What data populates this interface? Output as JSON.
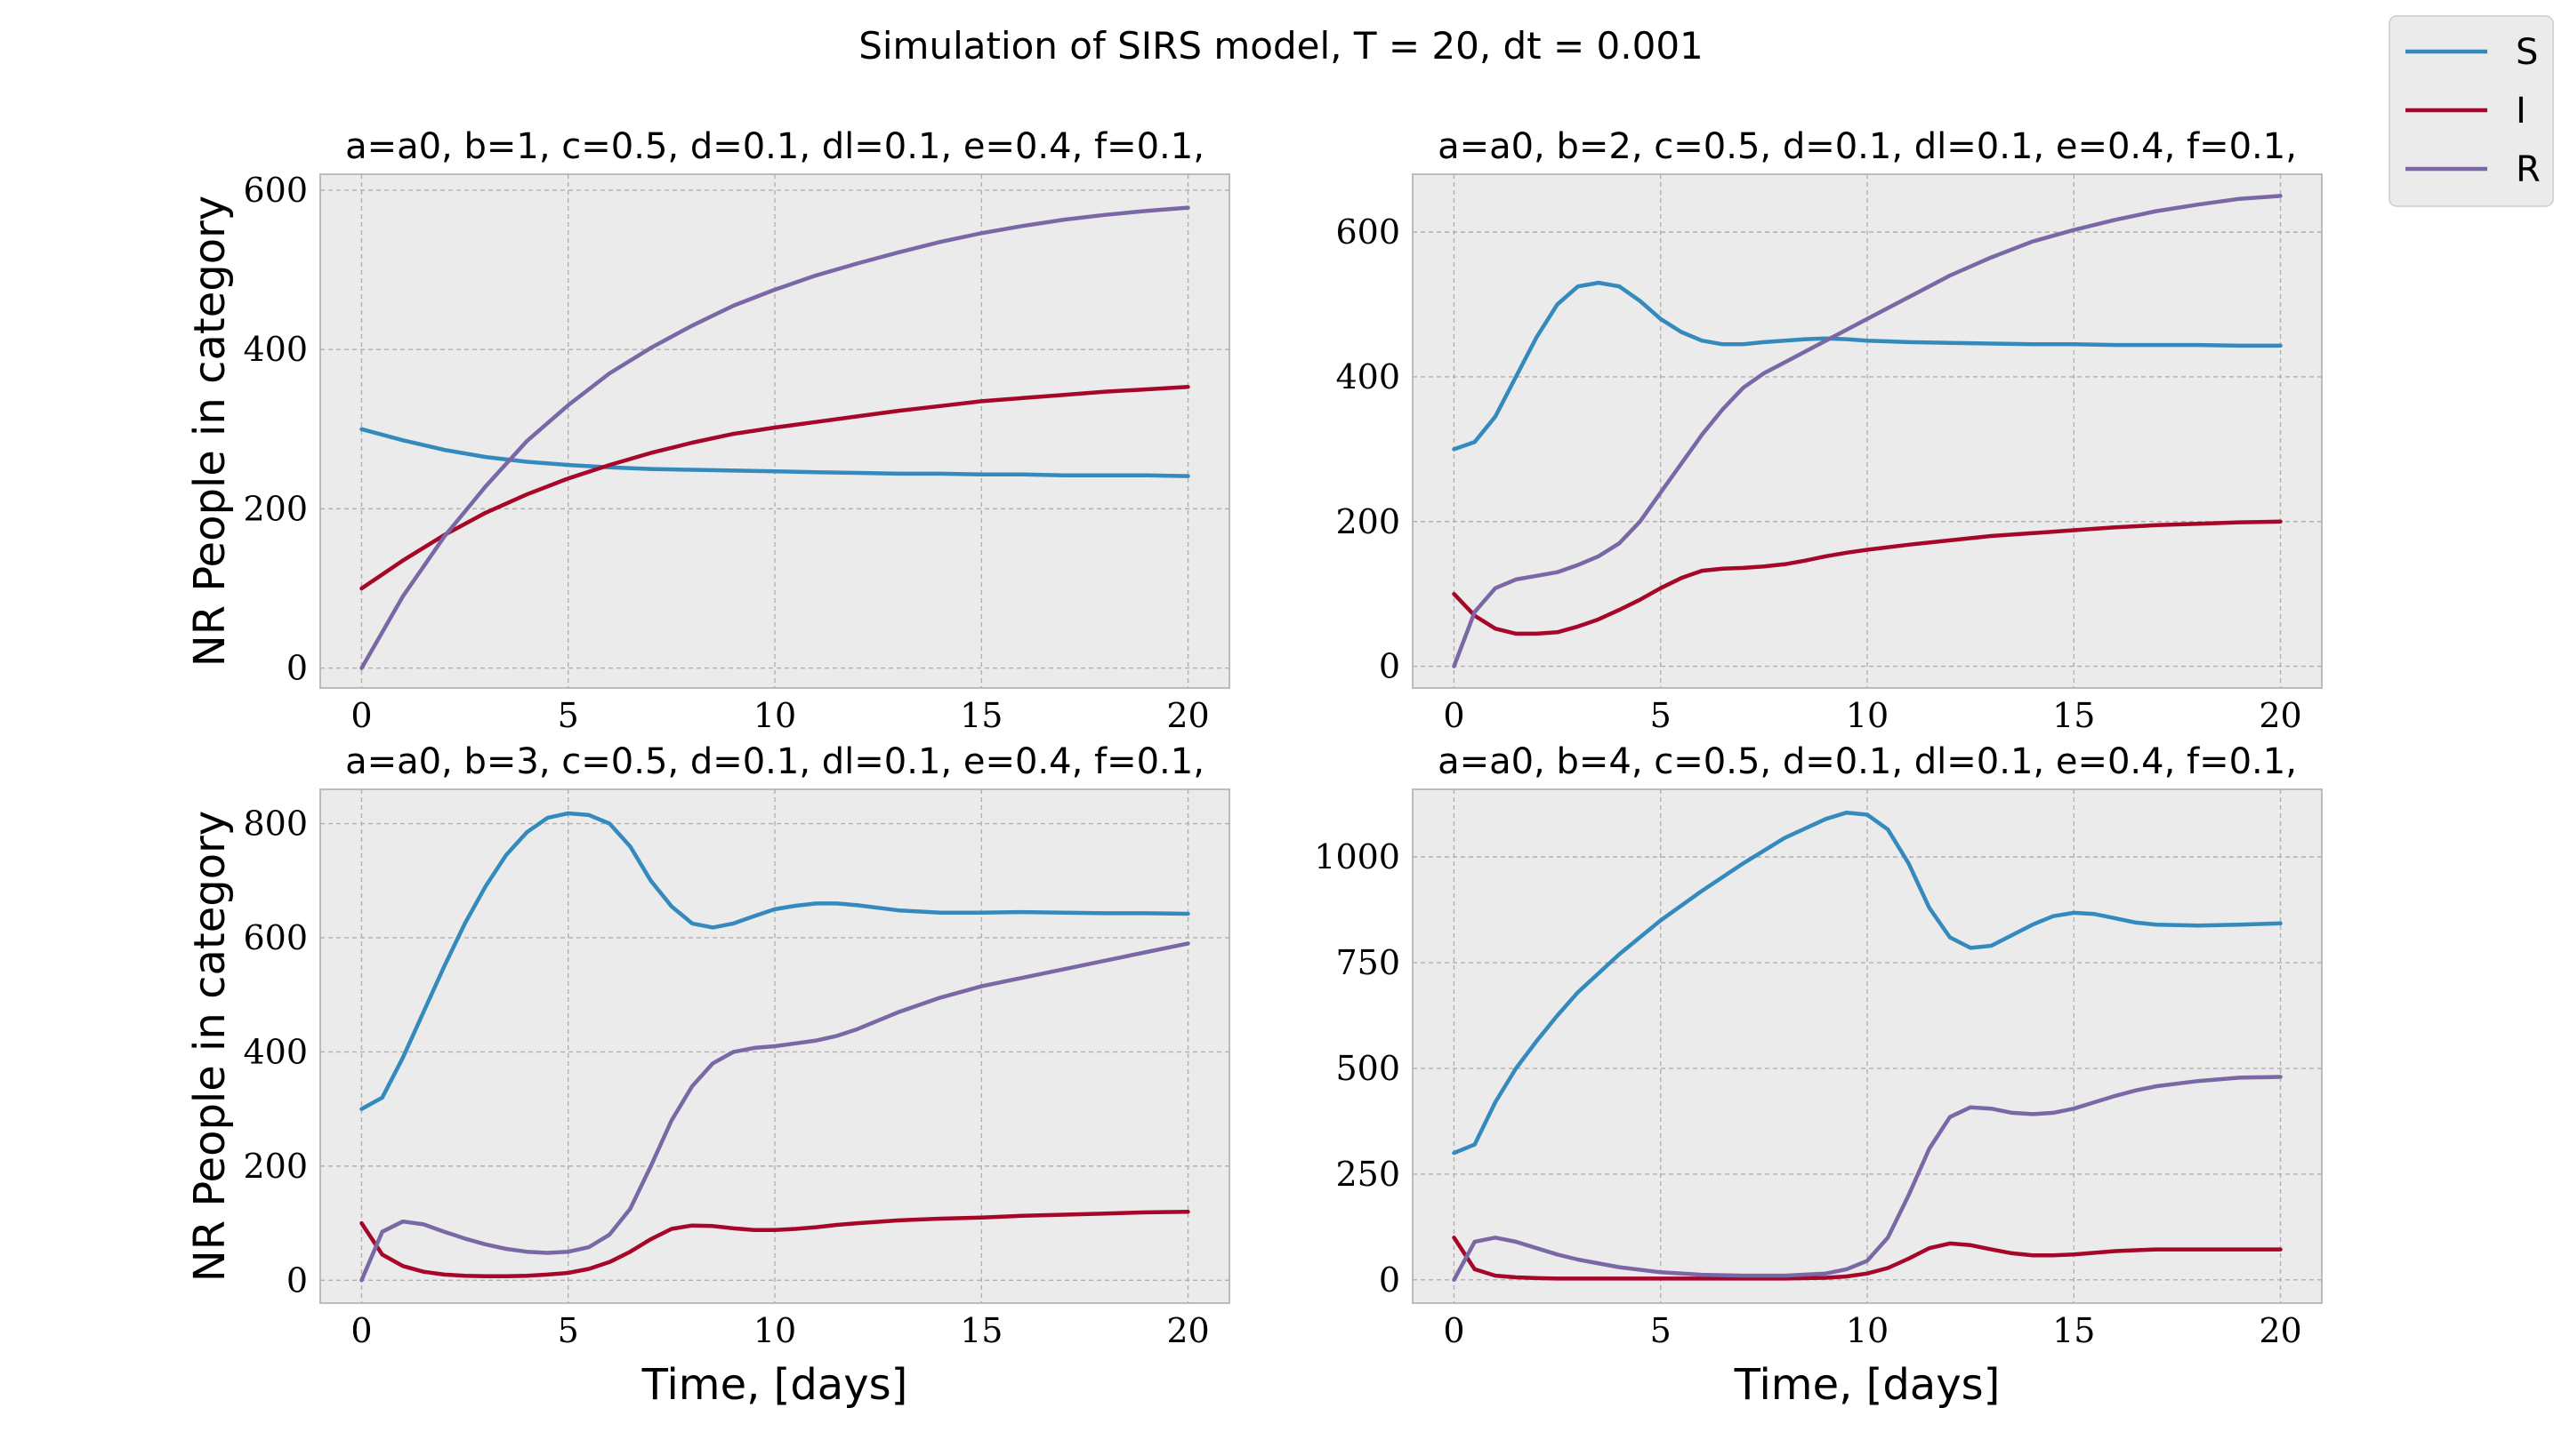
{
  "suptitle": "Simulation of SIRS model, T = 20, dt = 0.001",
  "legend": {
    "placement": "upper-right",
    "entries": [
      {
        "label": "S",
        "color": "#348ABD"
      },
      {
        "label": "I",
        "color": "#A60628"
      },
      {
        "label": "R",
        "color": "#7A68A6"
      }
    ]
  },
  "style": {
    "facecolor": "#EBEBEB",
    "grid": true,
    "grid_style": "dashed"
  },
  "chart_data": [
    {
      "type": "line",
      "title": "a=a0, b=1, c=0.5, d=0.1, dl=0.1, e=0.4, f=0.1,",
      "xlabel": "",
      "ylabel": "NR People in category",
      "xlim": [
        -1,
        21
      ],
      "ylim": [
        -25,
        620
      ],
      "xticks": [
        0,
        5,
        10,
        15,
        20
      ],
      "yticks": [
        0,
        200,
        400,
        600
      ],
      "x": [
        0,
        1,
        2,
        3,
        4,
        5,
        6,
        7,
        8,
        9,
        10,
        11,
        12,
        13,
        14,
        15,
        16,
        17,
        18,
        19,
        20
      ],
      "series": [
        {
          "name": "S",
          "values": [
            300,
            286,
            274,
            265,
            259,
            255,
            252,
            250,
            249,
            248,
            247,
            246,
            245,
            244,
            244,
            243,
            243,
            242,
            242,
            242,
            241
          ]
        },
        {
          "name": "I",
          "values": [
            100,
            135,
            167,
            195,
            218,
            238,
            255,
            270,
            283,
            294,
            302,
            309,
            316,
            323,
            329,
            335,
            339,
            343,
            347,
            350,
            353
          ]
        },
        {
          "name": "R",
          "values": [
            0,
            90,
            165,
            228,
            285,
            330,
            370,
            402,
            430,
            455,
            475,
            493,
            508,
            522,
            535,
            546,
            555,
            563,
            569,
            574,
            578
          ]
        }
      ]
    },
    {
      "type": "line",
      "title": "a=a0, b=2, c=0.5, d=0.1, dl=0.1, e=0.4, f=0.1,",
      "xlabel": "",
      "ylabel": "",
      "xlim": [
        -1,
        21
      ],
      "ylim": [
        -30,
        680
      ],
      "xticks": [
        0,
        5,
        10,
        15,
        20
      ],
      "yticks": [
        0,
        200,
        400,
        600
      ],
      "x": [
        0,
        0.5,
        1,
        1.5,
        2,
        2.5,
        3,
        3.5,
        4,
        4.5,
        5,
        5.5,
        6,
        6.5,
        7,
        7.5,
        8,
        8.5,
        9,
        9.5,
        10,
        11,
        12,
        13,
        14,
        15,
        16,
        17,
        18,
        19,
        20
      ],
      "series": [
        {
          "name": "S",
          "values": [
            300,
            310,
            345,
            400,
            455,
            500,
            525,
            530,
            525,
            505,
            480,
            462,
            450,
            445,
            445,
            448,
            450,
            452,
            453,
            452,
            450,
            448,
            447,
            446,
            445,
            445,
            444,
            444,
            444,
            443,
            443
          ]
        },
        {
          "name": "I",
          "values": [
            100,
            70,
            52,
            45,
            45,
            47,
            55,
            65,
            78,
            92,
            108,
            122,
            132,
            135,
            136,
            138,
            141,
            146,
            152,
            157,
            161,
            168,
            174,
            180,
            184,
            188,
            192,
            195,
            197,
            199,
            200
          ]
        },
        {
          "name": "R",
          "values": [
            0,
            75,
            108,
            120,
            125,
            130,
            140,
            152,
            170,
            200,
            240,
            280,
            320,
            355,
            385,
            405,
            420,
            435,
            450,
            465,
            480,
            510,
            540,
            565,
            587,
            603,
            617,
            629,
            638,
            646,
            650
          ]
        }
      ]
    },
    {
      "type": "line",
      "title": "a=a0, b=3, c=0.5, d=0.1, dl=0.1, e=0.4, f=0.1,",
      "xlabel": "Time, [days]",
      "ylabel": "NR People in category",
      "xlim": [
        -1,
        21
      ],
      "ylim": [
        -40,
        860
      ],
      "xticks": [
        0,
        5,
        10,
        15,
        20
      ],
      "yticks": [
        0,
        200,
        400,
        600,
        800
      ],
      "x": [
        0,
        0.5,
        1,
        1.5,
        2,
        2.5,
        3,
        3.5,
        4,
        4.5,
        5,
        5.5,
        6,
        6.5,
        7,
        7.5,
        8,
        8.5,
        9,
        9.5,
        10,
        10.5,
        11,
        11.5,
        12,
        13,
        14,
        15,
        16,
        17,
        18,
        19,
        20
      ],
      "series": [
        {
          "name": "S",
          "values": [
            300,
            320,
            390,
            470,
            550,
            625,
            690,
            745,
            785,
            810,
            818,
            815,
            800,
            760,
            700,
            655,
            625,
            618,
            625,
            638,
            650,
            656,
            660,
            660,
            657,
            648,
            644,
            644,
            645,
            644,
            643,
            643,
            642
          ]
        },
        {
          "name": "I",
          "values": [
            100,
            45,
            25,
            15,
            10,
            8,
            7,
            7,
            8,
            10,
            13,
            20,
            32,
            50,
            72,
            90,
            96,
            95,
            91,
            88,
            88,
            90,
            93,
            97,
            100,
            105,
            108,
            110,
            113,
            115,
            117,
            119,
            120
          ]
        },
        {
          "name": "R",
          "values": [
            0,
            85,
            103,
            98,
            85,
            73,
            63,
            55,
            50,
            48,
            50,
            58,
            80,
            125,
            200,
            280,
            340,
            380,
            400,
            407,
            410,
            415,
            420,
            428,
            440,
            470,
            495,
            515,
            530,
            545,
            560,
            575,
            590
          ]
        }
      ]
    },
    {
      "type": "line",
      "title": "a=a0, b=4, c=0.5, d=0.1, dl=0.1, e=0.4, f=0.1,",
      "xlabel": "Time, [days]",
      "ylabel": "",
      "xlim": [
        -1,
        21
      ],
      "ylim": [
        -55,
        1160
      ],
      "xticks": [
        0,
        5,
        10,
        15,
        20
      ],
      "yticks": [
        0,
        250,
        500,
        750,
        1000
      ],
      "x": [
        0,
        0.5,
        1,
        1.5,
        2,
        2.5,
        3,
        4,
        5,
        6,
        7,
        8,
        9,
        9.5,
        10,
        10.5,
        11,
        11.5,
        12,
        12.5,
        13,
        13.5,
        14,
        14.5,
        15,
        15.5,
        16,
        16.5,
        17,
        18,
        19,
        20
      ],
      "series": [
        {
          "name": "S",
          "values": [
            300,
            320,
            420,
            500,
            565,
            625,
            680,
            770,
            850,
            920,
            985,
            1045,
            1090,
            1105,
            1100,
            1065,
            985,
            880,
            810,
            785,
            790,
            815,
            840,
            860,
            868,
            865,
            855,
            845,
            840,
            838,
            840,
            843
          ]
        },
        {
          "name": "I",
          "values": [
            100,
            25,
            10,
            6,
            4,
            3,
            3,
            3,
            3,
            3,
            3,
            3,
            5,
            8,
            15,
            28,
            50,
            75,
            86,
            82,
            72,
            63,
            58,
            58,
            60,
            64,
            68,
            70,
            72,
            72,
            72,
            72
          ]
        },
        {
          "name": "R",
          "values": [
            0,
            90,
            100,
            90,
            75,
            60,
            48,
            30,
            18,
            12,
            10,
            10,
            15,
            25,
            45,
            100,
            200,
            310,
            385,
            408,
            405,
            395,
            392,
            395,
            405,
            420,
            435,
            448,
            458,
            470,
            478,
            480
          ]
        }
      ]
    }
  ]
}
